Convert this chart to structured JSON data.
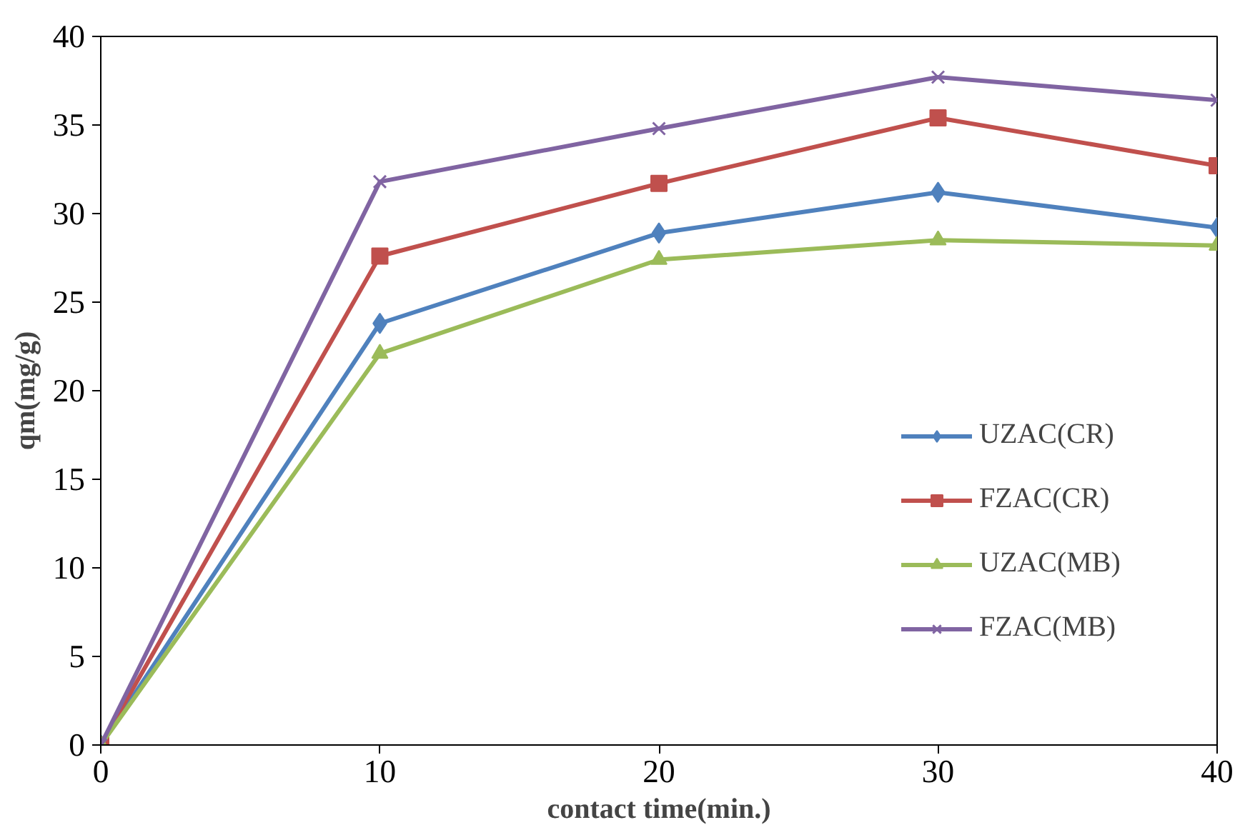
{
  "chart_data": {
    "type": "line",
    "xlabel": "contact time(min.)",
    "ylabel": "qm(mg/g)",
    "x": [
      0,
      10,
      20,
      30,
      40
    ],
    "xlim": [
      0,
      40
    ],
    "xticks": [
      0,
      10,
      20,
      30,
      40
    ],
    "ylim": [
      0,
      40
    ],
    "yticks": [
      0,
      5,
      10,
      15,
      20,
      25,
      30,
      35,
      40
    ],
    "grid": false,
    "legend": "right",
    "series": [
      {
        "name": "UZAC(CR)",
        "color": "#4f81bd",
        "marker": "diamond",
        "values": [
          0,
          23.8,
          28.9,
          31.2,
          29.2
        ]
      },
      {
        "name": "FZAC(CR)",
        "color": "#c0504d",
        "marker": "square",
        "values": [
          0,
          27.6,
          31.7,
          35.4,
          32.7
        ]
      },
      {
        "name": "UZAC(MB)",
        "color": "#9bbb59",
        "marker": "triangle",
        "values": [
          0,
          22.1,
          27.4,
          28.5,
          28.2
        ]
      },
      {
        "name": "FZAC(MB)",
        "color": "#8064a2",
        "marker": "cross",
        "values": [
          0,
          31.8,
          34.8,
          37.7,
          36.4
        ]
      }
    ]
  }
}
